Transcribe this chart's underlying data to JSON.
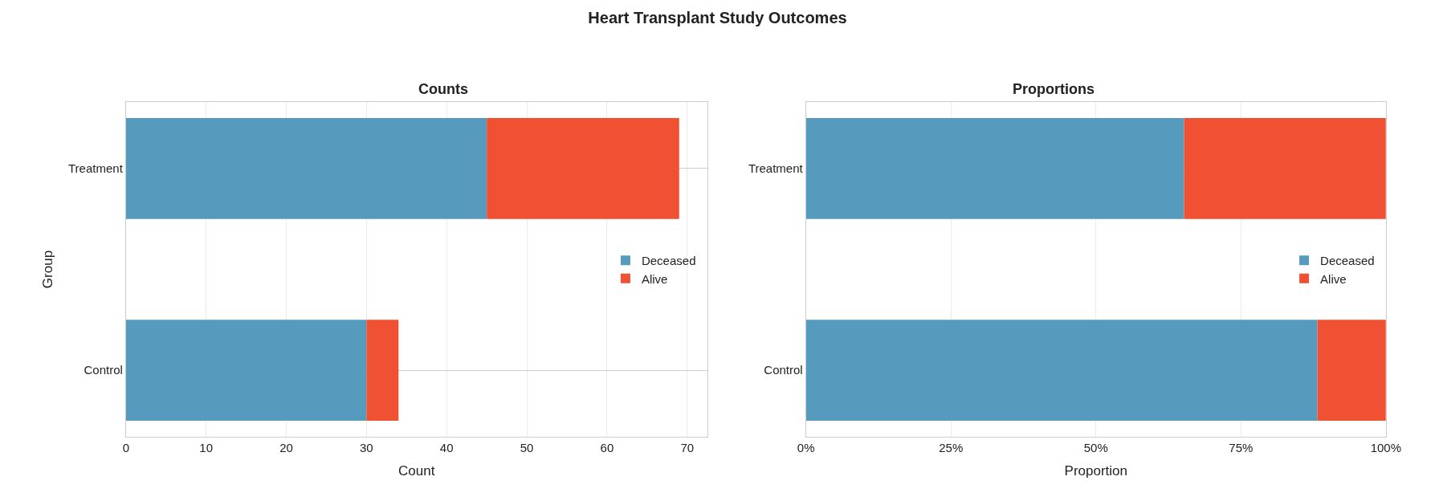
{
  "chart_data": [
    {
      "type": "bar",
      "title": "Heart Transplant Study Outcomes",
      "subtitle": "Counts",
      "orientation": "horizontal",
      "stacked": true,
      "xlabel": "Count",
      "ylabel": "Group",
      "categories": [
        "Treatment",
        "Control"
      ],
      "series": [
        {
          "name": "Deceased",
          "color": "#569bbd",
          "values": [
            45,
            30
          ]
        },
        {
          "name": "Alive",
          "color": "#f05133",
          "values": [
            24,
            4
          ]
        }
      ],
      "xlim": [
        0,
        72.5
      ],
      "xticks": [
        0,
        10,
        20,
        30,
        40,
        50,
        60,
        70
      ],
      "grid": true,
      "legend": "right"
    },
    {
      "type": "bar",
      "subtitle": "Proportions",
      "orientation": "horizontal",
      "stacked": true,
      "xlabel": "Proportion",
      "categories": [
        "Treatment",
        "Control"
      ],
      "series": [
        {
          "name": "Deceased",
          "color": "#569bbd",
          "values": [
            0.652,
            0.882
          ]
        },
        {
          "name": "Alive",
          "color": "#f05133",
          "values": [
            0.348,
            0.118
          ]
        }
      ],
      "xlim": [
        0,
        1
      ],
      "xticks": [
        {
          "value": 0,
          "label": "0%"
        },
        {
          "value": 0.25,
          "label": "25%"
        },
        {
          "value": 0.5,
          "label": "50%"
        },
        {
          "value": 0.75,
          "label": "75%"
        },
        {
          "value": 1,
          "label": "100%"
        }
      ],
      "grid": true,
      "legend": "right"
    }
  ]
}
